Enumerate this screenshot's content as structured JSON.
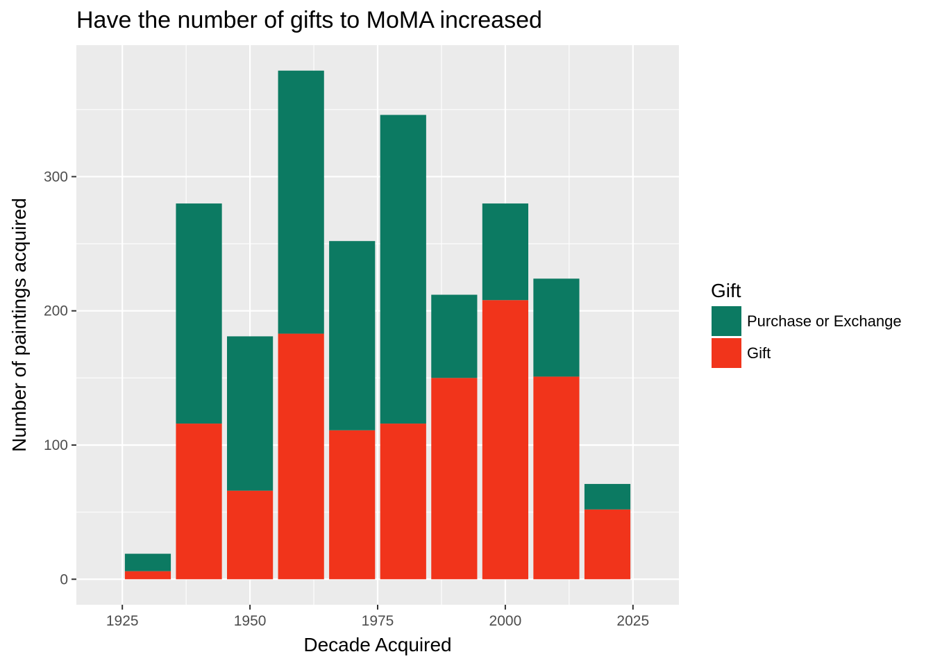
{
  "chart_data": {
    "type": "bar",
    "stacked": true,
    "title": "Have the number of gifts to MoMA increased",
    "xlabel": "Decade Acquired",
    "ylabel": "Number of paintings acquired",
    "x": [
      1930,
      1940,
      1950,
      1960,
      1970,
      1980,
      1990,
      2000,
      2010,
      2020
    ],
    "series": [
      {
        "name": "Gift",
        "color": "#f1341b",
        "values": [
          6,
          116,
          66,
          183,
          111,
          116,
          150,
          208,
          151,
          52
        ]
      },
      {
        "name": "Purchase or Exchange",
        "color": "#0c7a62",
        "values": [
          13,
          164,
          115,
          196,
          141,
          230,
          62,
          72,
          73,
          19
        ]
      }
    ],
    "xlim": [
      1916,
      2034
    ],
    "ylim": [
      -19,
      398
    ],
    "x_ticks": [
      "1925",
      "1950",
      "1975",
      "2000",
      "2025"
    ],
    "x_tick_values": [
      1925,
      1950,
      1975,
      2000,
      2025
    ],
    "y_ticks": [
      "0",
      "100",
      "200",
      "300"
    ],
    "y_tick_values": [
      0,
      100,
      200,
      300
    ],
    "grid": true,
    "panel_background": "#ebebeb",
    "legend": {
      "title": "Gift",
      "placement": "right",
      "entries": [
        {
          "label": "Purchase or Exchange",
          "color": "#0c7a62"
        },
        {
          "label": "Gift",
          "color": "#f1341b"
        }
      ]
    }
  }
}
